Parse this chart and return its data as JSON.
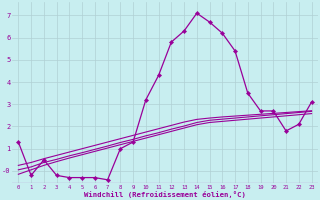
{
  "x_values": [
    0,
    1,
    2,
    3,
    4,
    5,
    6,
    7,
    8,
    9,
    10,
    11,
    12,
    13,
    14,
    15,
    16,
    17,
    18,
    19,
    20,
    21,
    22,
    23
  ],
  "line1": [
    1.3,
    -0.2,
    0.5,
    -0.2,
    -0.3,
    -0.3,
    -0.3,
    -0.4,
    1.0,
    1.3,
    3.2,
    4.3,
    5.8,
    6.3,
    7.1,
    6.7,
    6.2,
    5.4,
    3.5,
    2.7,
    2.7,
    1.8,
    2.1,
    3.1
  ],
  "line2": [
    0.05,
    0.18,
    0.38,
    0.52,
    0.68,
    0.82,
    0.97,
    1.12,
    1.28,
    1.42,
    1.58,
    1.72,
    1.88,
    2.02,
    2.18,
    2.28,
    2.33,
    2.38,
    2.43,
    2.48,
    2.53,
    2.58,
    2.63,
    2.68
  ],
  "line3": [
    0.25,
    0.38,
    0.55,
    0.7,
    0.85,
    1.0,
    1.15,
    1.3,
    1.45,
    1.6,
    1.75,
    1.9,
    2.05,
    2.2,
    2.32,
    2.38,
    2.43,
    2.47,
    2.51,
    2.55,
    2.59,
    2.63,
    2.67,
    2.71
  ],
  "line4": [
    -0.15,
    0.05,
    0.25,
    0.42,
    0.58,
    0.73,
    0.88,
    1.03,
    1.18,
    1.33,
    1.48,
    1.63,
    1.78,
    1.93,
    2.08,
    2.18,
    2.23,
    2.28,
    2.33,
    2.38,
    2.43,
    2.48,
    2.53,
    2.58
  ],
  "line_color": "#990099",
  "bg_color": "#c8eef0",
  "grid_color": "#b0d0d4",
  "xlabel": "Windchill (Refroidissement éolien,°C)",
  "ylim": [
    -0.55,
    7.6
  ],
  "xlim": [
    -0.5,
    23.5
  ],
  "yticks": [
    0,
    1,
    2,
    3,
    4,
    5,
    6,
    7
  ],
  "ytick_labels": [
    "-0",
    "1",
    "2",
    "3",
    "4",
    "5",
    "6",
    "7"
  ],
  "xticks": [
    0,
    1,
    2,
    3,
    4,
    5,
    6,
    7,
    8,
    9,
    10,
    11,
    12,
    13,
    14,
    15,
    16,
    17,
    18,
    19,
    20,
    21,
    22,
    23
  ]
}
